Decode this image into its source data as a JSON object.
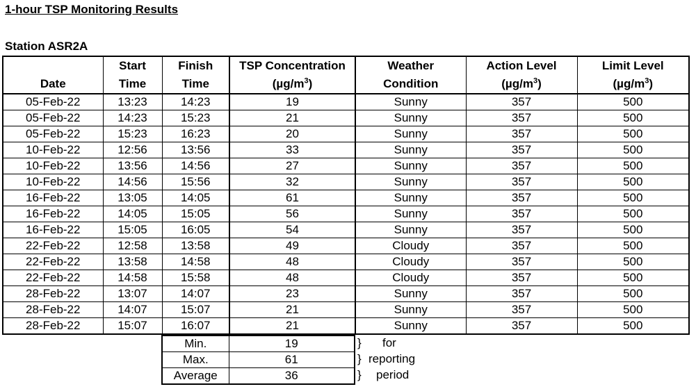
{
  "title": "1-hour TSP Monitoring Results",
  "station": "Station ASR2A",
  "headers": {
    "date": [
      "",
      "Date"
    ],
    "start": [
      "Start",
      "Time"
    ],
    "finish": [
      "Finish",
      "Time"
    ],
    "tsp": [
      "TSP Concentration",
      "(µg/m",
      "3",
      ")"
    ],
    "weather": [
      "Weather",
      "Condition"
    ],
    "action": [
      "Action Level",
      "(µg/m",
      "3",
      ")"
    ],
    "limit": [
      "Limit Level",
      "(µg/m",
      "3",
      ")"
    ]
  },
  "rows": [
    [
      "05-Feb-22",
      "13:23",
      "14:23",
      "19",
      "Sunny",
      "357",
      "500"
    ],
    [
      "05-Feb-22",
      "14:23",
      "15:23",
      "21",
      "Sunny",
      "357",
      "500"
    ],
    [
      "05-Feb-22",
      "15:23",
      "16:23",
      "20",
      "Sunny",
      "357",
      "500"
    ],
    [
      "10-Feb-22",
      "12:56",
      "13:56",
      "33",
      "Sunny",
      "357",
      "500"
    ],
    [
      "10-Feb-22",
      "13:56",
      "14:56",
      "27",
      "Sunny",
      "357",
      "500"
    ],
    [
      "10-Feb-22",
      "14:56",
      "15:56",
      "32",
      "Sunny",
      "357",
      "500"
    ],
    [
      "16-Feb-22",
      "13:05",
      "14:05",
      "61",
      "Sunny",
      "357",
      "500"
    ],
    [
      "16-Feb-22",
      "14:05",
      "15:05",
      "56",
      "Sunny",
      "357",
      "500"
    ],
    [
      "16-Feb-22",
      "15:05",
      "16:05",
      "54",
      "Sunny",
      "357",
      "500"
    ],
    [
      "22-Feb-22",
      "12:58",
      "13:58",
      "49",
      "Cloudy",
      "357",
      "500"
    ],
    [
      "22-Feb-22",
      "13:58",
      "14:58",
      "48",
      "Cloudy",
      "357",
      "500"
    ],
    [
      "22-Feb-22",
      "14:58",
      "15:58",
      "48",
      "Cloudy",
      "357",
      "500"
    ],
    [
      "28-Feb-22",
      "13:07",
      "14:07",
      "23",
      "Sunny",
      "357",
      "500"
    ],
    [
      "28-Feb-22",
      "14:07",
      "15:07",
      "21",
      "Sunny",
      "357",
      "500"
    ],
    [
      "28-Feb-22",
      "15:07",
      "16:07",
      "21",
      "Sunny",
      "357",
      "500"
    ]
  ],
  "summary": [
    {
      "label": "Min.",
      "value": "19",
      "note": "for"
    },
    {
      "label": "Max.",
      "value": "61",
      "note": "reporting"
    },
    {
      "label": "Average",
      "value": "36",
      "note": "period"
    }
  ],
  "brace": "}"
}
